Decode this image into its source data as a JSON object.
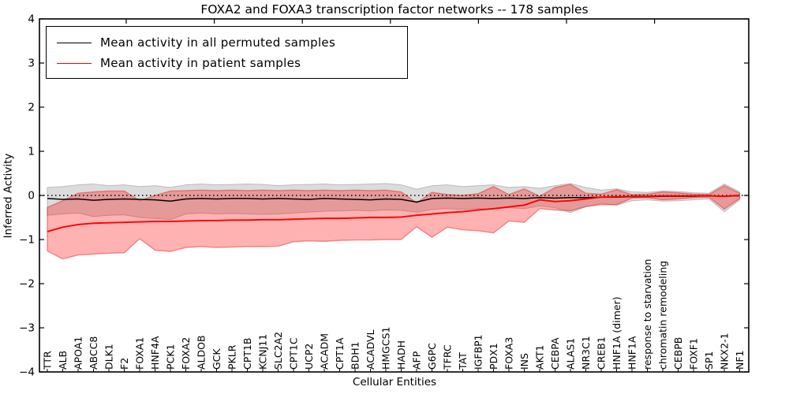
{
  "title": "FOXA2 and FOXA3 transcription factor networks -- 178 samples",
  "legend": {
    "entries": [
      {
        "label": "Mean activity in all permuted samples",
        "color": "#000000"
      },
      {
        "label": "Mean activity in patient samples",
        "color": "#ff0000"
      }
    ],
    "position": "upper left"
  },
  "axes": {
    "xlabel": "Cellular Entities",
    "ylabel": "Inferred Activity",
    "yticks": [
      "4",
      "3",
      "2",
      "1",
      "0",
      "−1",
      "−2",
      "−3",
      "−4"
    ]
  },
  "chart_data": {
    "type": "line",
    "title": "FOXA2 and FOXA3 transcription factor networks -- 178 samples",
    "xlabel": "Cellular Entities",
    "ylabel": "Inferred Activity",
    "ylim": [
      -4,
      4
    ],
    "yticks": [
      4,
      3,
      2,
      1,
      0,
      -1,
      -2,
      -3,
      -4
    ],
    "grid": false,
    "zero_line": true,
    "legend_position": "upper left",
    "categories": [
      "TTR",
      "ALB",
      "APOA1",
      "ABCC8",
      "DLK1",
      "F2",
      "FOXA1",
      "HNF4A",
      "PCK1",
      "FOXA2",
      "ALDOB",
      "GCK",
      "PKLR",
      "CPT1B",
      "KCNJ11",
      "SLC2A2",
      "CPT1C",
      "UCP2",
      "ACADM",
      "CPT1A",
      "BDH1",
      "ACADVL",
      "HMGCS1",
      "HADH",
      "AFP",
      "G6PC",
      "TFRC",
      "TAT",
      "IGFBP1",
      "PDX1",
      "FOXA3",
      "INS",
      "AKT1",
      "CEBPA",
      "ALAS1",
      "NR3C1",
      "CREB1",
      "HNF1A (dimer)",
      "HNF1A",
      "response to starvation",
      "chromatin remodeling",
      "CEBPB",
      "FOXF1",
      "SP1",
      "NKX2-1",
      "NF1"
    ],
    "series": [
      {
        "name": "Mean activity in all permuted samples",
        "color": "#000000",
        "band_color": "rgba(128,128,128,0.28)",
        "band_edge": "rgba(128,128,128,0.45)",
        "values": [
          -0.07,
          -0.09,
          -0.08,
          -0.11,
          -0.09,
          -0.08,
          -0.09,
          -0.1,
          -0.13,
          -0.08,
          -0.07,
          -0.08,
          -0.07,
          -0.07,
          -0.08,
          -0.07,
          -0.08,
          -0.09,
          -0.07,
          -0.08,
          -0.09,
          -0.1,
          -0.08,
          -0.09,
          -0.15,
          -0.07,
          -0.06,
          -0.07,
          -0.06,
          -0.07,
          -0.06,
          -0.07,
          -0.05,
          -0.06,
          -0.05,
          -0.05,
          -0.04,
          -0.04,
          -0.03,
          -0.03,
          -0.02,
          -0.02,
          -0.02,
          -0.01,
          -0.02,
          -0.01
        ],
        "band_upper": [
          0.18,
          0.2,
          0.24,
          0.26,
          0.22,
          0.24,
          0.2,
          0.22,
          0.18,
          0.24,
          0.26,
          0.24,
          0.25,
          0.26,
          0.25,
          0.22,
          0.24,
          0.25,
          0.26,
          0.24,
          0.25,
          0.26,
          0.27,
          0.24,
          0.14,
          0.22,
          0.24,
          0.2,
          0.22,
          0.24,
          0.18,
          0.2,
          0.16,
          0.22,
          0.27,
          0.18,
          0.12,
          0.15,
          0.08,
          0.07,
          0.1,
          0.09,
          0.06,
          0.05,
          0.26,
          0.08
        ],
        "band_lower": [
          -0.45,
          -0.42,
          -0.4,
          -0.48,
          -0.45,
          -0.44,
          -0.5,
          -0.52,
          -0.55,
          -0.42,
          -0.4,
          -0.42,
          -0.41,
          -0.42,
          -0.43,
          -0.42,
          -0.4,
          -0.38,
          -0.36,
          -0.35,
          -0.34,
          -0.35,
          -0.33,
          -0.34,
          -0.38,
          -0.32,
          -0.3,
          -0.32,
          -0.3,
          -0.31,
          -0.28,
          -0.3,
          -0.24,
          -0.28,
          -0.39,
          -0.26,
          -0.18,
          -0.22,
          -0.12,
          -0.1,
          -0.13,
          -0.12,
          -0.1,
          -0.08,
          -0.37,
          -0.1
        ]
      },
      {
        "name": "Mean activity in patient samples",
        "color": "#ff0000",
        "band_color": "rgba(255,0,0,0.30)",
        "band_edge": "rgba(225,30,30,0.45)",
        "values": [
          -0.82,
          -0.72,
          -0.66,
          -0.63,
          -0.62,
          -0.61,
          -0.6,
          -0.59,
          -0.59,
          -0.58,
          -0.57,
          -0.57,
          -0.56,
          -0.56,
          -0.55,
          -0.55,
          -0.54,
          -0.53,
          -0.52,
          -0.52,
          -0.51,
          -0.5,
          -0.5,
          -0.49,
          -0.45,
          -0.42,
          -0.39,
          -0.37,
          -0.33,
          -0.3,
          -0.26,
          -0.22,
          -0.1,
          -0.14,
          -0.12,
          -0.08,
          -0.04,
          -0.03,
          -0.02,
          -0.02,
          -0.01,
          -0.01,
          -0.01,
          -0.01,
          -0.02,
          0.0
        ],
        "band_upper": [
          -0.27,
          -0.12,
          0.05,
          0.08,
          0.1,
          0.1,
          -0.12,
          0.0,
          0.1,
          0.11,
          0.12,
          0.11,
          0.12,
          0.11,
          0.12,
          0.11,
          0.12,
          0.11,
          0.12,
          0.11,
          0.12,
          0.11,
          0.12,
          0.08,
          -0.17,
          0.07,
          0.02,
          0.0,
          0.04,
          0.2,
          0.02,
          0.15,
          -0.02,
          0.18,
          0.25,
          0.05,
          0.03,
          0.13,
          0.02,
          0.03,
          0.08,
          0.06,
          0.03,
          0.02,
          0.22,
          0.05
        ],
        "band_lower": [
          -1.26,
          -1.44,
          -1.35,
          -1.33,
          -1.31,
          -1.3,
          -0.98,
          -1.24,
          -1.27,
          -1.18,
          -1.16,
          -1.18,
          -1.17,
          -1.16,
          -1.16,
          -1.15,
          -1.05,
          -1.03,
          -1.04,
          -1.02,
          -1.01,
          -1.01,
          -1.0,
          -1.0,
          -0.71,
          -0.95,
          -0.72,
          -0.78,
          -0.8,
          -0.85,
          -0.58,
          -0.61,
          -0.3,
          -0.33,
          -0.35,
          -0.25,
          -0.21,
          -0.21,
          -0.06,
          -0.05,
          -0.1,
          -0.08,
          -0.05,
          -0.04,
          -0.31,
          -0.07
        ]
      }
    ]
  },
  "colors": {
    "frame": "#000000",
    "background": "#ffffff"
  }
}
